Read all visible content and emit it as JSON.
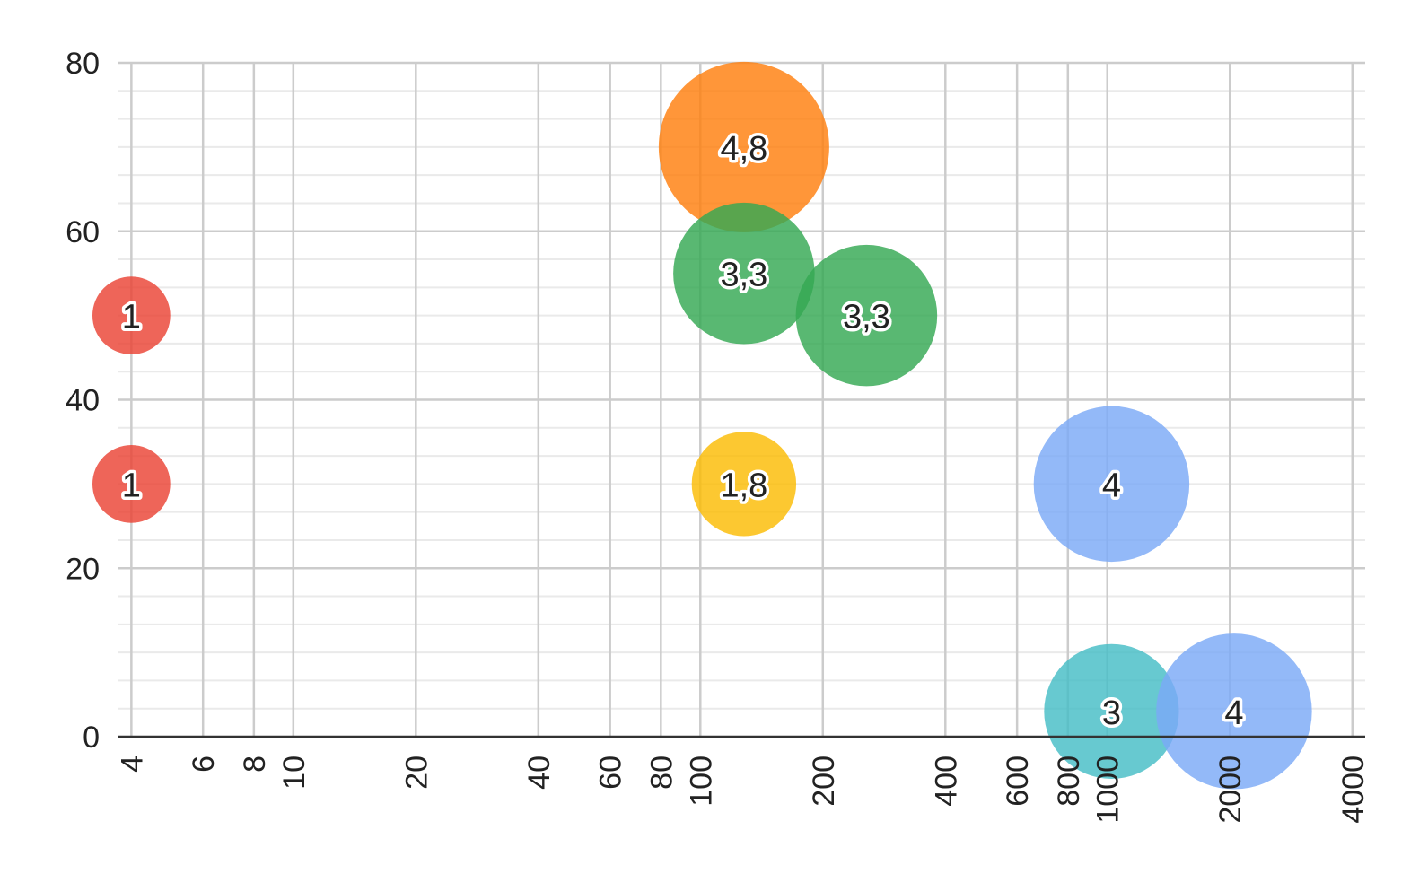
{
  "chart_data": {
    "type": "scatter",
    "variant": "bubble",
    "title": "",
    "xlabel": "",
    "ylabel": "",
    "x_scale": "log",
    "xlim": [
      3.7,
      4300
    ],
    "ylim": [
      0,
      80
    ],
    "x_ticks": [
      4,
      6,
      8,
      10,
      20,
      40,
      60,
      80,
      100,
      200,
      400,
      600,
      800,
      1000,
      2000,
      4000
    ],
    "x_tick_labels": [
      "4",
      "6",
      "8",
      "10",
      "20",
      "40",
      "60",
      "80",
      "100",
      "200",
      "400",
      "600",
      "800",
      "1000",
      "2000",
      "4000"
    ],
    "y_ticks": [
      0,
      20,
      40,
      60,
      80
    ],
    "y_tick_labels": [
      "0",
      "20",
      "40",
      "60",
      "80"
    ],
    "grid": true,
    "legend": "none",
    "size_range": [
      1,
      4.8
    ],
    "points": [
      {
        "x": 4,
        "y": 50,
        "size": 1,
        "label": "1",
        "color": "#EA4335"
      },
      {
        "x": 4,
        "y": 30,
        "size": 1,
        "label": "1",
        "color": "#EA4335"
      },
      {
        "x": 128,
        "y": 70,
        "size": 4.8,
        "label": "4,8",
        "color": "#FF7F0E"
      },
      {
        "x": 128,
        "y": 55,
        "size": 3.3,
        "label": "3,3",
        "color": "#34A853"
      },
      {
        "x": 256,
        "y": 50,
        "size": 3.3,
        "label": "3,3",
        "color": "#34A853"
      },
      {
        "x": 128,
        "y": 30,
        "size": 1.8,
        "label": "1,8",
        "color": "#FBBC04"
      },
      {
        "x": 1024,
        "y": 30,
        "size": 4,
        "label": "4",
        "color": "#7BAAF7"
      },
      {
        "x": 1024,
        "y": 3,
        "size": 3,
        "label": "3",
        "color": "#46BDC6"
      },
      {
        "x": 2048,
        "y": 3,
        "size": 4,
        "label": "4",
        "color": "#7BAAF7"
      }
    ]
  }
}
